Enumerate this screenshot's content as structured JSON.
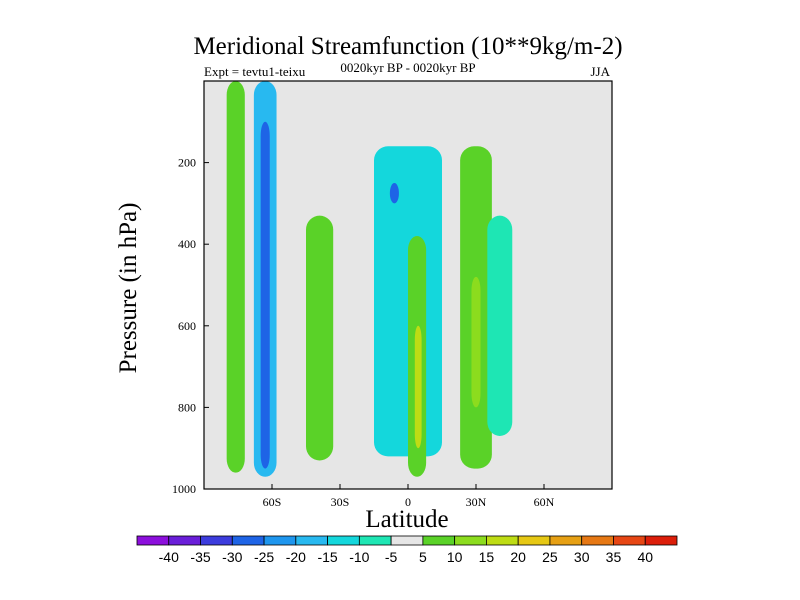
{
  "chart_data": {
    "type": "contour",
    "title": "Meridional Streamfunction (10**9kg/m-2)",
    "left_label": "Expt = tevtu1-teixu",
    "center_label": "0020kyr BP - 0020kyr BP",
    "right_label": "JJA",
    "xlabel": "Latitude",
    "ylabel": "Pressure (in hPa)",
    "xlim": [
      -90,
      90
    ],
    "ylim": [
      1000,
      0
    ],
    "x_ticks": [
      {
        "value": -60,
        "label": "60S"
      },
      {
        "value": -30,
        "label": "30S"
      },
      {
        "value": 0,
        "label": "0"
      },
      {
        "value": 30,
        "label": "30N"
      },
      {
        "value": 60,
        "label": "60N"
      }
    ],
    "y_ticks": [
      {
        "value": 200,
        "label": "200"
      },
      {
        "value": 400,
        "label": "400"
      },
      {
        "value": 600,
        "label": "600"
      },
      {
        "value": 800,
        "label": "800"
      },
      {
        "value": 1000,
        "label": "1000"
      }
    ],
    "colorbar": {
      "labels": [
        "-40",
        "-35",
        "-30",
        "-25",
        "-20",
        "-15",
        "-10",
        "-5",
        "5",
        "10",
        "15",
        "20",
        "25",
        "30",
        "35",
        "40"
      ],
      "colors": [
        "#8c0fdc",
        "#6a1ed9",
        "#3c3cdd",
        "#1e64e6",
        "#1e96ee",
        "#28b9f0",
        "#14d7dc",
        "#1ee6b4",
        "#e6e6e6",
        "#5ad228",
        "#8cdc1e",
        "#bedc14",
        "#e6c814",
        "#e6a014",
        "#e67814",
        "#e64614",
        "#dc1e0a"
      ]
    },
    "regions": [
      {
        "name": "sh-polar-positive",
        "value": 10,
        "lat": [
          -80,
          -72
        ],
        "plev": [
          0,
          960
        ]
      },
      {
        "name": "sh-high-lat-negative",
        "value": -15,
        "lat": [
          -68,
          -58
        ],
        "plev": [
          0,
          970
        ]
      },
      {
        "name": "sh-high-lat-core",
        "value": -25,
        "lat": [
          -65,
          -61
        ],
        "plev": [
          100,
          950
        ]
      },
      {
        "name": "sh-midlat-positive",
        "value": 10,
        "lat": [
          -45,
          -33
        ],
        "plev": [
          330,
          930
        ]
      },
      {
        "name": "tropical-upper-negative",
        "value": -10,
        "lat": [
          -15,
          15
        ],
        "plev": [
          160,
          920
        ]
      },
      {
        "name": "tropical-upper-core",
        "value": -25,
        "lat": [
          -8,
          -4
        ],
        "plev": [
          250,
          300
        ]
      },
      {
        "name": "tropical-lower-positive",
        "value": 10,
        "lat": [
          0,
          8
        ],
        "plev": [
          380,
          970
        ]
      },
      {
        "name": "tropical-lower-core",
        "value": 20,
        "lat": [
          3,
          6
        ],
        "plev": [
          600,
          900
        ]
      },
      {
        "name": "nh-subtropical-positive",
        "value": 10,
        "lat": [
          23,
          37
        ],
        "plev": [
          160,
          950
        ]
      },
      {
        "name": "nh-subtropical-core",
        "value": 15,
        "lat": [
          28,
          32
        ],
        "plev": [
          480,
          800
        ]
      },
      {
        "name": "nh-midlat-negative",
        "value": -5,
        "lat": [
          35,
          46
        ],
        "plev": [
          330,
          870
        ]
      }
    ]
  }
}
